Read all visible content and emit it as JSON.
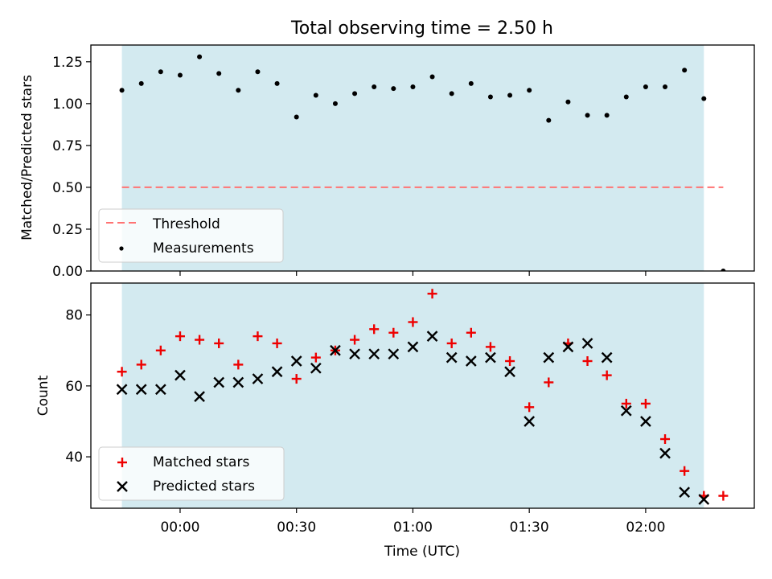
{
  "colors": {
    "shade": "#b3dbe6",
    "threshold": "#ff7373",
    "measurement": "#000000",
    "matched": "#ee0000",
    "predicted": "#000000"
  },
  "chart_data": [
    {
      "type": "scatter",
      "title": "Total observing time = 2.50 h",
      "ylabel": "Matched/Predicted stars",
      "xlabel": "",
      "ylim": [
        0,
        1.35
      ],
      "yticks": [
        0,
        0.25,
        0.5,
        0.75,
        1.0,
        1.25
      ],
      "ytick_labels": [
        "0.00",
        "0.25",
        "0.50",
        "0.75",
        "1.00",
        "1.25"
      ],
      "x_unit": "minutes since 00:00 UTC",
      "xlim": [
        -23,
        148
      ],
      "shaded_interval": [
        -15,
        135
      ],
      "threshold": {
        "name": "Threshold",
        "value": 0.5,
        "x_range": [
          -15,
          140
        ],
        "style": "dashed"
      },
      "series": [
        {
          "name": "Measurements",
          "marker": "dot",
          "x": [
            -15,
            -10,
            -5,
            0,
            5,
            10,
            15,
            20,
            25,
            30,
            35,
            40,
            45,
            50,
            55,
            60,
            65,
            70,
            75,
            80,
            85,
            90,
            95,
            100,
            105,
            110,
            115,
            120,
            125,
            130,
            135,
            140
          ],
          "y": [
            1.08,
            1.12,
            1.19,
            1.17,
            1.28,
            1.18,
            1.08,
            1.19,
            1.12,
            0.92,
            1.05,
            1.0,
            1.06,
            1.1,
            1.09,
            1.1,
            1.16,
            1.06,
            1.12,
            1.04,
            1.05,
            1.08,
            0.9,
            1.01,
            0.93,
            0.93,
            1.04,
            1.1,
            1.1,
            1.2,
            1.03,
            0.0
          ]
        }
      ],
      "legend": {
        "placement": "lower-left",
        "entries": [
          "Threshold",
          "Measurements"
        ]
      }
    },
    {
      "type": "scatter",
      "title": "",
      "ylabel": "Count",
      "xlabel": "Time (UTC)",
      "ylim": [
        25.5,
        89
      ],
      "yticks": [
        40,
        60,
        80
      ],
      "ytick_labels": [
        "40",
        "60",
        "80"
      ],
      "xlim": [
        -23,
        148
      ],
      "xticks": [
        0,
        30,
        60,
        90,
        120
      ],
      "xtick_labels": [
        "00:00",
        "00:30",
        "01:00",
        "01:30",
        "02:00"
      ],
      "shaded_interval": [
        -15,
        135
      ],
      "series": [
        {
          "name": "Matched stars",
          "marker": "plus",
          "x": [
            -15,
            -10,
            -5,
            0,
            5,
            10,
            15,
            20,
            25,
            30,
            35,
            40,
            45,
            50,
            55,
            60,
            65,
            70,
            75,
            80,
            85,
            90,
            95,
            100,
            105,
            110,
            115,
            120,
            125,
            130,
            135,
            140
          ],
          "y": [
            64,
            66,
            70,
            74,
            73,
            72,
            66,
            74,
            72,
            62,
            68,
            70,
            73,
            76,
            75,
            78,
            86,
            72,
            75,
            71,
            67,
            54,
            61,
            72,
            67,
            63,
            55,
            55,
            45,
            36,
            29,
            29
          ]
        },
        {
          "name": "Predicted stars",
          "marker": "x",
          "x": [
            -15,
            -10,
            -5,
            0,
            5,
            10,
            15,
            20,
            25,
            30,
            35,
            40,
            45,
            50,
            55,
            60,
            65,
            70,
            75,
            80,
            85,
            90,
            95,
            100,
            105,
            110,
            115,
            120,
            125,
            130,
            135
          ],
          "y": [
            59,
            59,
            59,
            63,
            57,
            61,
            61,
            62,
            64,
            67,
            65,
            70,
            69,
            69,
            69,
            71,
            74,
            68,
            67,
            68,
            64,
            50,
            68,
            71,
            72,
            68,
            53,
            50,
            41,
            30,
            28
          ]
        }
      ],
      "legend": {
        "placement": "lower-left",
        "entries": [
          "Matched stars",
          "Predicted stars"
        ]
      }
    }
  ]
}
